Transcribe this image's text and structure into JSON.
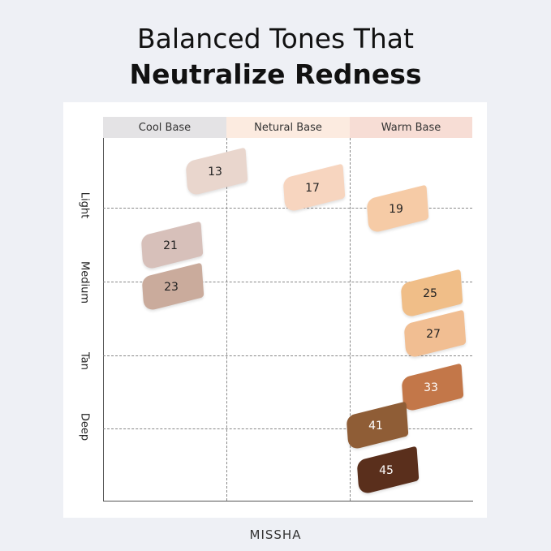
{
  "title_line1": "Balanced Tones That",
  "title_line2": "Neutralize Redness",
  "columns": [
    {
      "label": "Cool Base",
      "color": "#e4e3e5"
    },
    {
      "label": "Netural Base",
      "color": "#fcebe0"
    },
    {
      "label": "Warm Base",
      "color": "#f7ddd5"
    }
  ],
  "rows": [
    "Light",
    "Medium",
    "Tan",
    "Deep"
  ],
  "shades": [
    {
      "label": "13",
      "color": "#e9d6cd",
      "text": "#222"
    },
    {
      "label": "17",
      "color": "#f7d5bf",
      "text": "#222"
    },
    {
      "label": "19",
      "color": "#f6cba6",
      "text": "#222"
    },
    {
      "label": "21",
      "color": "#d7c0ba",
      "text": "#222"
    },
    {
      "label": "23",
      "color": "#caab9c",
      "text": "#222"
    },
    {
      "label": "25",
      "color": "#f0be88",
      "text": "#222"
    },
    {
      "label": "27",
      "color": "#f1be92",
      "text": "#222"
    },
    {
      "label": "33",
      "color": "#c37749",
      "text": "#fff"
    },
    {
      "label": "41",
      "color": "#8f5d36",
      "text": "#fff"
    },
    {
      "label": "45",
      "color": "#5a2f1c",
      "text": "#fff"
    }
  ],
  "brand": "MISSHA"
}
